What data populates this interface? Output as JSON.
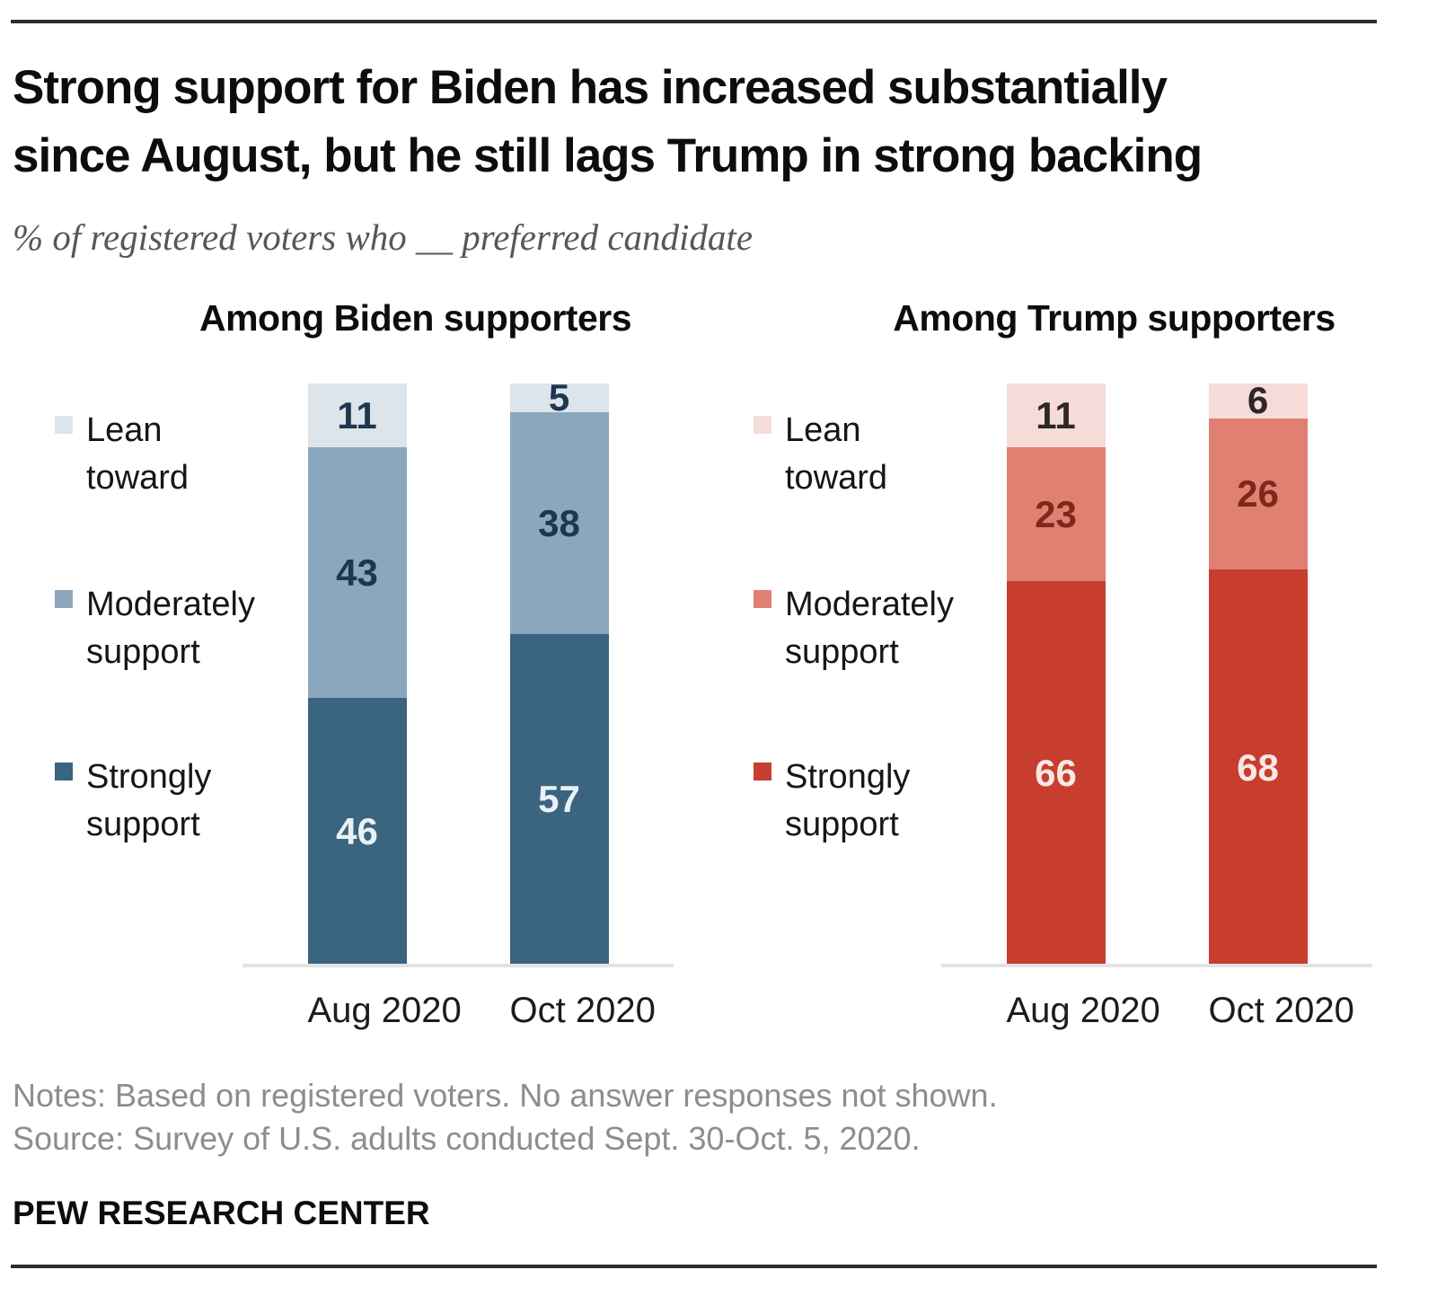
{
  "header": {
    "title_lines": [
      "Strong support for Biden has increased substantially",
      "since August, but he still lags Trump in strong backing"
    ],
    "subtitle": "% of registered voters who __ preferred candidate"
  },
  "chart_data": [
    {
      "type": "bar",
      "stacked": true,
      "title": "Among Biden supporters",
      "categories": [
        "Aug 2020",
        "Oct 2020"
      ],
      "series": [
        {
          "name": "Lean toward",
          "values": [
            11,
            5
          ],
          "color": "#dde5ea",
          "label_color": "#1e3750"
        },
        {
          "name": "Moderately support",
          "values": [
            43,
            38
          ],
          "color": "#8ba7bd",
          "label_color": "#1e3750"
        },
        {
          "name": "Strongly support",
          "values": [
            46,
            57
          ],
          "color": "#3b6480",
          "label_color": "#eaf1f6"
        }
      ],
      "ylim": [
        0,
        100
      ],
      "grid": false,
      "legend_position": "left",
      "axis_color": "#e3e3e3"
    },
    {
      "type": "bar",
      "stacked": true,
      "title": "Among Trump supporters",
      "categories": [
        "Aug 2020",
        "Oct 2020"
      ],
      "series": [
        {
          "name": "Lean toward",
          "values": [
            11,
            6
          ],
          "color": "#f5dcd8",
          "label_color": "#2e2727"
        },
        {
          "name": "Moderately support",
          "values": [
            23,
            26
          ],
          "color": "#e08072",
          "label_color": "#82251a"
        },
        {
          "name": "Strongly support",
          "values": [
            66,
            68
          ],
          "color": "#c73e2e",
          "label_color": "#f7e8e5"
        }
      ],
      "ylim": [
        0,
        100
      ],
      "grid": false,
      "legend_position": "left",
      "axis_color": "#e3e3e3"
    }
  ],
  "footer": {
    "notes": "Notes: Based on registered voters. No answer responses not shown.",
    "source": "Source: Survey of U.S. adults conducted Sept. 30-Oct. 5, 2020.",
    "brand": "PEW RESEARCH CENTER"
  }
}
